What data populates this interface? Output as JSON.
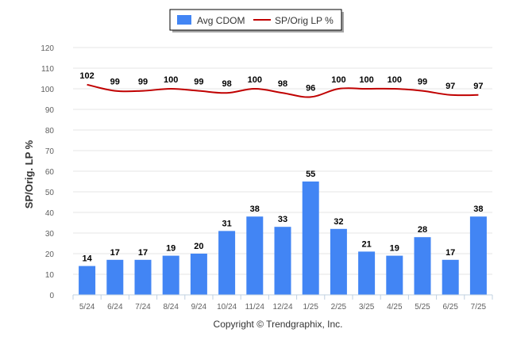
{
  "chart_data": {
    "type": "bar",
    "title": "",
    "xlabel": "",
    "ylabel": "SP/Orig. LP %",
    "ylim": [
      0,
      120
    ],
    "yticks": [
      0,
      10,
      20,
      30,
      40,
      50,
      60,
      70,
      80,
      90,
      100,
      110,
      120
    ],
    "grid": true,
    "legend_position": "top-center",
    "categories": [
      "5/24",
      "6/24",
      "7/24",
      "8/24",
      "9/24",
      "10/24",
      "11/24",
      "12/24",
      "1/25",
      "2/25",
      "3/25",
      "4/25",
      "5/25",
      "6/25",
      "7/25"
    ],
    "series": [
      {
        "name": "Avg CDOM",
        "type": "bar",
        "color": "#4285f4",
        "values": [
          14,
          17,
          17,
          19,
          20,
          31,
          38,
          33,
          55,
          32,
          21,
          19,
          28,
          17,
          38
        ]
      },
      {
        "name": "SP/Orig LP %",
        "type": "line",
        "color": "#c00000",
        "values": [
          102,
          99,
          99,
          100,
          99,
          98,
          100,
          98,
          96,
          100,
          100,
          100,
          99,
          97,
          97
        ]
      }
    ]
  },
  "footer": {
    "copyright": "Copyright © Trendgraphix, Inc."
  }
}
